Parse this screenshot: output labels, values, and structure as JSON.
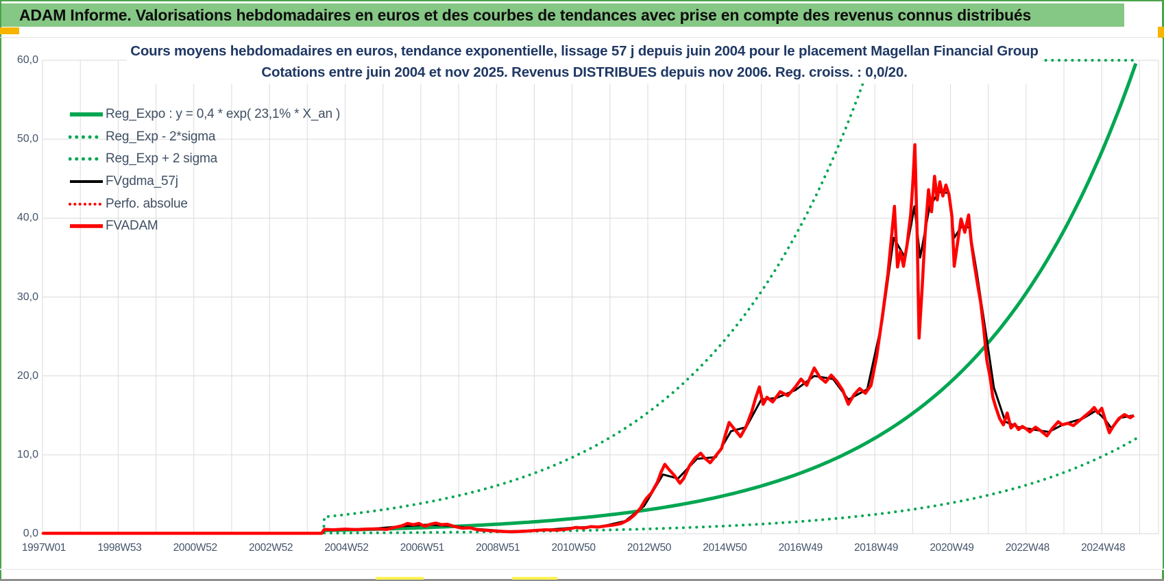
{
  "window": {
    "title_bar": "ADAM Informe. Valorisations hebdomadaires en euros et des courbes de tendances avec prise en compte des revenus connus distribués"
  },
  "colors": {
    "frame_green": "#4AA34A",
    "title_bar_bg": "#85C784",
    "accent_yellow": "#F7B500",
    "chart_title_text": "#1F3864",
    "axis_text": "#44546A",
    "grid": "#DADADA",
    "series_green": "#00A651",
    "series_red": "#FF0000",
    "series_black": "#000000"
  },
  "chart": {
    "title_line1": "Cours moyens hebdomadaires en euros, tendance exponentielle, lissage 57 j depuis juin 2004 pour le placement Magellan Financial Group",
    "title_line2": "Cotations entre juin 2004 et nov 2025. Revenus DISTRIBUES depuis nov 2006. Reg. croiss. : 0,0/20."
  },
  "chart_data": {
    "type": "line",
    "title": "Cours moyens hebdomadaires en euros, tendance exponentielle, lissage 57 j depuis juin 2004 pour le placement Magellan Financial Group",
    "subtitle": "Cotations entre juin 2004 et nov 2025. Revenus DISTRIBUES depuis nov 2006. Reg. croiss. : 0,0/20.",
    "grid": "on",
    "legend_position": "upper-left",
    "x_axis": {
      "range_years": [
        1997,
        2026.5
      ],
      "tick_years": [
        1997,
        1999,
        2001,
        2003,
        2005,
        2007,
        2009,
        2011,
        2013,
        2015,
        2017,
        2019,
        2021,
        2023,
        2025
      ],
      "tick_labels": [
        "1997W01",
        "1998W53",
        "2000W52",
        "2002W52",
        "2004W52",
        "2006W51",
        "2008W51",
        "2010W50",
        "2012W50",
        "2014W50",
        "2016W49",
        "2018W49",
        "2020W49",
        "2022W48",
        "2024W48"
      ],
      "minor_grid_every_years": 1
    },
    "y_axis": {
      "range": [
        0,
        60
      ],
      "tick_values": [
        0,
        10,
        20,
        30,
        40,
        50,
        60
      ],
      "tick_labels": [
        "0,0",
        "10,0",
        "20,0",
        "30,0",
        "40,0",
        "50,0",
        "60,0"
      ]
    },
    "series": [
      {
        "name": "Reg_Expo : y = 0,4 * exp( 23,1% *  X_an )",
        "color": "#00A651",
        "style": "solid",
        "width": 5,
        "formula": {
          "y0": 0.42,
          "annual_rate": 0.231,
          "x0_year": 2004.45,
          "start_year": 2004.45,
          "end_year": 2025.9,
          "multiplier": 1
        }
      },
      {
        "name": "Reg_Exp - 2*sigma",
        "color": "#00A651",
        "style": "dotted",
        "width": 4,
        "formula": {
          "y0": 0.42,
          "annual_rate": 0.231,
          "x0_year": 2004.45,
          "start_year": 2004.45,
          "end_year": 2025.9,
          "multiplier": 0.202
        }
      },
      {
        "name": "Reg_Exp + 2 sigma",
        "color": "#00A651",
        "style": "dotted",
        "width": 4,
        "formula": {
          "y0": 0.42,
          "annual_rate": 0.231,
          "x0_year": 2004.45,
          "start_year": 2004.45,
          "end_year": 2025.9,
          "multiplier": 5.07,
          "cap": 60,
          "jump_from_zero": true
        }
      },
      {
        "name": "FVgdma_57j",
        "color": "#000000",
        "style": "solid",
        "width": 3,
        "points": [
          [
            2004.45,
            0.5
          ],
          [
            2005.5,
            0.55
          ],
          [
            2006.5,
            0.95
          ],
          [
            2007.2,
            1.15
          ],
          [
            2007.8,
            1.0
          ],
          [
            2008.5,
            0.6
          ],
          [
            2009.3,
            0.3
          ],
          [
            2010.2,
            0.45
          ],
          [
            2011.0,
            0.75
          ],
          [
            2011.8,
            0.95
          ],
          [
            2012.4,
            1.6
          ],
          [
            2012.9,
            3.5
          ],
          [
            2013.4,
            7.5
          ],
          [
            2013.8,
            7.0
          ],
          [
            2014.3,
            9.5
          ],
          [
            2014.8,
            9.7
          ],
          [
            2015.2,
            13.0
          ],
          [
            2015.6,
            13.5
          ],
          [
            2016.0,
            17.0
          ],
          [
            2016.4,
            17.2
          ],
          [
            2016.9,
            18.2
          ],
          [
            2017.4,
            20.0
          ],
          [
            2017.9,
            19.6
          ],
          [
            2018.3,
            17.0
          ],
          [
            2018.8,
            18.3
          ],
          [
            2019.2,
            27.0
          ],
          [
            2019.5,
            37.5
          ],
          [
            2019.8,
            35.0
          ],
          [
            2020.05,
            41.5
          ],
          [
            2020.2,
            35.0
          ],
          [
            2020.45,
            41.5
          ],
          [
            2020.7,
            43.3
          ],
          [
            2020.95,
            43.2
          ],
          [
            2021.1,
            37.5
          ],
          [
            2021.3,
            39.0
          ],
          [
            2021.5,
            38.8
          ],
          [
            2021.7,
            33.0
          ],
          [
            2021.95,
            25.0
          ],
          [
            2022.15,
            18.5
          ],
          [
            2022.45,
            14.2
          ],
          [
            2022.8,
            13.5
          ],
          [
            2023.2,
            13.2
          ],
          [
            2023.6,
            12.9
          ],
          [
            2024.0,
            13.9
          ],
          [
            2024.5,
            14.6
          ],
          [
            2024.85,
            15.6
          ],
          [
            2025.1,
            14.4
          ],
          [
            2025.25,
            13.4
          ],
          [
            2025.5,
            14.7
          ],
          [
            2025.85,
            15.0
          ]
        ]
      },
      {
        "name": "Perfo. absolue",
        "color": "#FF0000",
        "style": "dotted",
        "width": 3,
        "points_ref": "FVADAM"
      },
      {
        "name": "FVADAM",
        "color": "#FF0000",
        "style": "solid",
        "width": 4.5,
        "points": [
          [
            1997.0,
            0.05
          ],
          [
            2004.38,
            0.05
          ],
          [
            2004.45,
            0.55
          ],
          [
            2004.7,
            0.5
          ],
          [
            2005.0,
            0.58
          ],
          [
            2005.3,
            0.52
          ],
          [
            2005.6,
            0.6
          ],
          [
            2005.9,
            0.62
          ],
          [
            2006.1,
            0.55
          ],
          [
            2006.3,
            0.8
          ],
          [
            2006.5,
            1.0
          ],
          [
            2006.65,
            1.3
          ],
          [
            2006.8,
            1.15
          ],
          [
            2006.95,
            1.3
          ],
          [
            2007.1,
            0.95
          ],
          [
            2007.25,
            1.2
          ],
          [
            2007.4,
            1.35
          ],
          [
            2007.55,
            1.15
          ],
          [
            2007.7,
            1.2
          ],
          [
            2007.9,
            0.9
          ],
          [
            2008.1,
            0.7
          ],
          [
            2008.3,
            0.75
          ],
          [
            2008.5,
            0.5
          ],
          [
            2008.8,
            0.4
          ],
          [
            2009.1,
            0.3
          ],
          [
            2009.4,
            0.25
          ],
          [
            2009.7,
            0.3
          ],
          [
            2010.0,
            0.4
          ],
          [
            2010.3,
            0.5
          ],
          [
            2010.6,
            0.45
          ],
          [
            2010.9,
            0.6
          ],
          [
            2011.1,
            0.8
          ],
          [
            2011.3,
            0.7
          ],
          [
            2011.5,
            0.9
          ],
          [
            2011.7,
            0.85
          ],
          [
            2011.9,
            1.0
          ],
          [
            2012.1,
            1.1
          ],
          [
            2012.3,
            1.3
          ],
          [
            2012.5,
            1.8
          ],
          [
            2012.65,
            2.4
          ],
          [
            2012.8,
            3.2
          ],
          [
            2012.95,
            4.4
          ],
          [
            2013.1,
            5.2
          ],
          [
            2013.25,
            6.5
          ],
          [
            2013.35,
            7.8
          ],
          [
            2013.45,
            8.8
          ],
          [
            2013.55,
            8.2
          ],
          [
            2013.7,
            7.4
          ],
          [
            2013.85,
            6.4
          ],
          [
            2013.95,
            7.0
          ],
          [
            2014.1,
            8.6
          ],
          [
            2014.25,
            9.6
          ],
          [
            2014.4,
            10.2
          ],
          [
            2014.5,
            9.6
          ],
          [
            2014.65,
            9.0
          ],
          [
            2014.8,
            9.9
          ],
          [
            2014.95,
            10.8
          ],
          [
            2015.05,
            12.5
          ],
          [
            2015.15,
            14.1
          ],
          [
            2015.3,
            13.2
          ],
          [
            2015.45,
            12.3
          ],
          [
            2015.6,
            13.6
          ],
          [
            2015.75,
            15.5
          ],
          [
            2015.85,
            17.2
          ],
          [
            2015.95,
            18.6
          ],
          [
            2016.05,
            16.4
          ],
          [
            2016.15,
            17.3
          ],
          [
            2016.3,
            16.7
          ],
          [
            2016.5,
            18.0
          ],
          [
            2016.7,
            17.5
          ],
          [
            2016.9,
            18.6
          ],
          [
            2017.05,
            19.6
          ],
          [
            2017.2,
            18.8
          ],
          [
            2017.4,
            21.0
          ],
          [
            2017.55,
            19.8
          ],
          [
            2017.7,
            19.2
          ],
          [
            2017.85,
            20.1
          ],
          [
            2018.0,
            19.3
          ],
          [
            2018.15,
            18.2
          ],
          [
            2018.3,
            16.4
          ],
          [
            2018.45,
            17.6
          ],
          [
            2018.6,
            18.4
          ],
          [
            2018.75,
            17.8
          ],
          [
            2018.9,
            18.8
          ],
          [
            2019.05,
            22.5
          ],
          [
            2019.2,
            27.5
          ],
          [
            2019.35,
            33.0
          ],
          [
            2019.45,
            38.0
          ],
          [
            2019.52,
            41.5
          ],
          [
            2019.6,
            33.8
          ],
          [
            2019.68,
            35.8
          ],
          [
            2019.76,
            33.9
          ],
          [
            2019.85,
            36.5
          ],
          [
            2019.95,
            40.5
          ],
          [
            2020.0,
            44.0
          ],
          [
            2020.06,
            49.3
          ],
          [
            2020.12,
            38.0
          ],
          [
            2020.17,
            24.8
          ],
          [
            2020.25,
            31.0
          ],
          [
            2020.33,
            38.0
          ],
          [
            2020.42,
            43.6
          ],
          [
            2020.5,
            40.8
          ],
          [
            2020.58,
            45.3
          ],
          [
            2020.65,
            42.3
          ],
          [
            2020.72,
            44.6
          ],
          [
            2020.8,
            42.8
          ],
          [
            2020.88,
            44.2
          ],
          [
            2020.96,
            43.0
          ],
          [
            2021.04,
            40.2
          ],
          [
            2021.1,
            33.9
          ],
          [
            2021.18,
            36.6
          ],
          [
            2021.28,
            39.9
          ],
          [
            2021.38,
            38.2
          ],
          [
            2021.48,
            40.4
          ],
          [
            2021.55,
            37.0
          ],
          [
            2021.63,
            34.2
          ],
          [
            2021.72,
            31.5
          ],
          [
            2021.8,
            29.3
          ],
          [
            2021.88,
            26.0
          ],
          [
            2021.96,
            22.0
          ],
          [
            2022.05,
            19.8
          ],
          [
            2022.12,
            17.3
          ],
          [
            2022.2,
            16.0
          ],
          [
            2022.3,
            14.6
          ],
          [
            2022.4,
            13.8
          ],
          [
            2022.5,
            15.3
          ],
          [
            2022.6,
            13.4
          ],
          [
            2022.7,
            13.9
          ],
          [
            2022.8,
            13.2
          ],
          [
            2022.9,
            13.6
          ],
          [
            2023.0,
            13.3
          ],
          [
            2023.1,
            12.9
          ],
          [
            2023.25,
            13.5
          ],
          [
            2023.4,
            13.0
          ],
          [
            2023.55,
            12.4
          ],
          [
            2023.7,
            13.4
          ],
          [
            2023.85,
            14.2
          ],
          [
            2023.95,
            13.8
          ],
          [
            2024.1,
            14.0
          ],
          [
            2024.25,
            13.7
          ],
          [
            2024.4,
            14.3
          ],
          [
            2024.55,
            14.9
          ],
          [
            2024.7,
            15.5
          ],
          [
            2024.8,
            16.0
          ],
          [
            2024.9,
            15.3
          ],
          [
            2025.0,
            15.9
          ],
          [
            2025.1,
            14.3
          ],
          [
            2025.2,
            12.8
          ],
          [
            2025.3,
            13.6
          ],
          [
            2025.45,
            14.6
          ],
          [
            2025.6,
            15.1
          ],
          [
            2025.75,
            14.7
          ],
          [
            2025.85,
            15.0
          ]
        ]
      }
    ],
    "legend": {
      "entries": [
        "Reg_Expo : y = 0,4 * exp( 23,1% *  X_an )",
        "Reg_Exp - 2*sigma",
        "Reg_Exp + 2 sigma",
        "FVgdma_57j",
        "Perfo. absolue",
        "FVADAM"
      ]
    }
  }
}
